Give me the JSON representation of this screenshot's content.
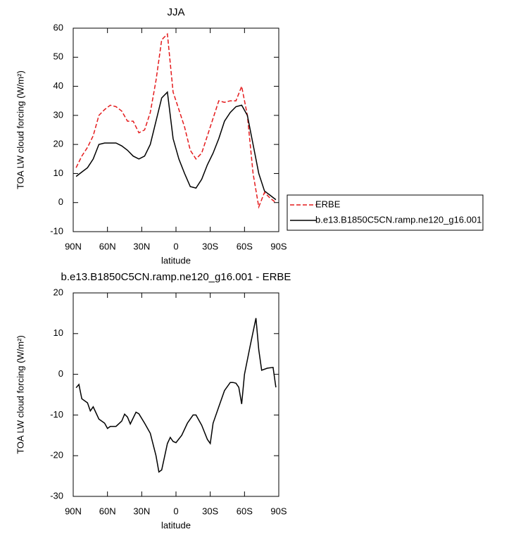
{
  "chart_data": [
    {
      "type": "line",
      "title": "JJA",
      "x_label": "latitude",
      "y_label": "TOA LW cloud forcing (W/m²)",
      "x": [
        87.5,
        82.5,
        77.5,
        72.5,
        67.5,
        62.5,
        57.5,
        52.5,
        47.5,
        42.5,
        37.5,
        32.5,
        27.5,
        22.5,
        17.5,
        12.5,
        7.5,
        2.5,
        -2.5,
        -7.5,
        -12.5,
        -17.5,
        -22.5,
        -27.5,
        -32.5,
        -37.5,
        -42.5,
        -47.5,
        -52.5,
        -57.5,
        -62.5,
        -67.5,
        -72.5,
        -77.5,
        -82.5,
        -87.5
      ],
      "series": [
        {
          "name": "ERBE",
          "color": "#e41a1c",
          "dashed": true,
          "values": [
            12,
            16,
            19,
            23,
            30,
            32,
            33.5,
            33,
            31.5,
            28,
            28,
            24,
            25,
            31,
            42,
            56,
            58,
            38,
            32,
            26,
            18,
            15,
            17,
            23,
            29,
            35,
            34.5,
            35,
            35,
            40,
            30,
            10,
            -1.5,
            3.5,
            1.5,
            0
          ]
        },
        {
          "name": "b.e13.B1850C5CN.ramp.ne120_g16.001",
          "color": "#000000",
          "dashed": false,
          "values": [
            9,
            10.5,
            12,
            15,
            20,
            20.5,
            20.5,
            20.5,
            19.5,
            18,
            16,
            15,
            16,
            20,
            28,
            36,
            38,
            22,
            15,
            10,
            5.5,
            5,
            8,
            13,
            17,
            22,
            28,
            31,
            33,
            33.5,
            30,
            20,
            10,
            4,
            2.5,
            1
          ]
        }
      ],
      "xlim": [
        90,
        -90
      ],
      "xticks": [
        {
          "value": 90,
          "label": "90N"
        },
        {
          "value": 60,
          "label": "60N"
        },
        {
          "value": 30,
          "label": "30N"
        },
        0,
        {
          "value": -30,
          "label": "30S"
        },
        {
          "value": -60,
          "label": "60S"
        },
        {
          "value": -90,
          "label": "90S"
        }
      ],
      "ylim": [
        -10,
        60
      ],
      "yticks": [
        -10,
        0,
        10,
        20,
        30,
        40,
        50,
        60
      ],
      "legend": "right"
    },
    {
      "type": "line",
      "title": "b.e13.B1850C5CN.ramp.ne120_g16.001 - ERBE",
      "x_label": "latitude",
      "y_label": "TOA LW cloud forcing (W/m²)",
      "x": [
        87.5,
        85,
        82.5,
        77.5,
        75,
        72.5,
        67.5,
        62.5,
        60,
        57.5,
        52.5,
        47.5,
        45,
        42.5,
        40,
        35,
        32.5,
        27.5,
        22.5,
        17.5,
        15,
        12.5,
        7.5,
        5,
        2.5,
        0,
        -5,
        -10,
        -15,
        -17.5,
        -22.5,
        -27.5,
        -30,
        -32.5,
        -37.5,
        -42.5,
        -47.5,
        -50,
        -52.5,
        -55,
        -57.5,
        -60,
        -65,
        -70,
        -72.5,
        -75,
        -80,
        -85,
        -87.5
      ],
      "values": [
        -3.3,
        -2.5,
        -6,
        -7,
        -9,
        -8,
        -11,
        -12,
        -13.3,
        -12.8,
        -12.8,
        -11.5,
        -9.8,
        -10.5,
        -12.2,
        -9.3,
        -9.7,
        -12,
        -14.5,
        -20,
        -24,
        -23.5,
        -17,
        -15.5,
        -16.5,
        -16.8,
        -15,
        -12,
        -10,
        -10,
        -12.5,
        -16,
        -17,
        -12,
        -8,
        -4,
        -2,
        -2,
        -2.2,
        -3.2,
        -7.3,
        0,
        7,
        13.8,
        6,
        1,
        1.5,
        1.7,
        -3.2
      ],
      "color": "#000000",
      "xlim": [
        90,
        -90
      ],
      "xticks": [
        {
          "value": 90,
          "label": "90N"
        },
        {
          "value": 60,
          "label": "60N"
        },
        {
          "value": 30,
          "label": "30N"
        },
        0,
        {
          "value": -30,
          "label": "30S"
        },
        {
          "value": -60,
          "label": "60S"
        },
        {
          "value": -90,
          "label": "90S"
        }
      ],
      "ylim": [
        -30,
        20
      ],
      "yticks": [
        -30,
        -20,
        -10,
        0,
        10,
        20
      ]
    }
  ]
}
